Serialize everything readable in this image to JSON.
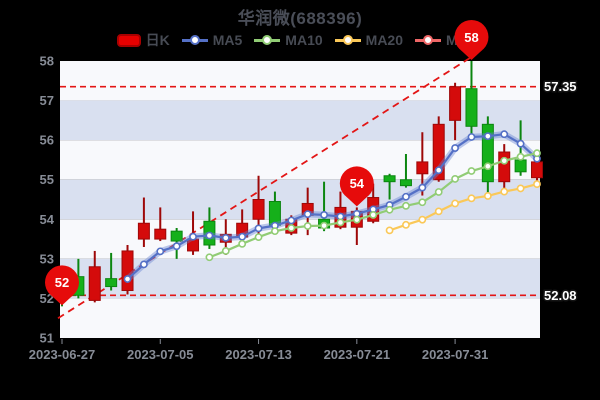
{
  "title": "华润微(688396)",
  "legend": [
    {
      "label": "日K",
      "color": "#e60000",
      "type": "rect"
    },
    {
      "label": "MA5",
      "color": "#5470c6",
      "type": "line"
    },
    {
      "label": "MA10",
      "color": "#91cc75",
      "type": "line"
    },
    {
      "label": "MA20",
      "color": "#fac858",
      "type": "line"
    },
    {
      "label": "MA30",
      "color": "#ee6666",
      "type": "line"
    }
  ],
  "chart_data": {
    "type": "candlestick",
    "title": "华润微(688396)",
    "y_axis": {
      "min": 51,
      "max": 58,
      "ticks": [
        58,
        57,
        56,
        55,
        54,
        53,
        52,
        51
      ]
    },
    "x_tick_indexes": [
      1,
      7,
      13,
      19,
      25
    ],
    "dates": [
      "2023-06-27",
      "2023-06-28",
      "2023-06-29",
      "2023-06-30",
      "2023-07-03",
      "2023-07-04",
      "2023-07-05",
      "2023-07-06",
      "2023-07-07",
      "2023-07-10",
      "2023-07-11",
      "2023-07-12",
      "2023-07-13",
      "2023-07-14",
      "2023-07-17",
      "2023-07-18",
      "2023-07-19",
      "2023-07-20",
      "2023-07-21",
      "2023-07-24",
      "2023-07-25",
      "2023-07-26",
      "2023-07-27",
      "2023-07-28",
      "2023-07-31",
      "2023-08-01",
      "2023-08-02",
      "2023-08-03",
      "2023-08-04",
      "2023-08-07"
    ],
    "candles": [
      {
        "open": 52.45,
        "close": 52.05,
        "low": 51.8,
        "high": 52.6
      },
      {
        "open": 52.55,
        "close": 52.08,
        "low": 52.0,
        "high": 53.0
      },
      {
        "open": 51.95,
        "close": 52.8,
        "low": 51.9,
        "high": 53.2
      },
      {
        "open": 52.5,
        "close": 52.3,
        "low": 52.2,
        "high": 53.15
      },
      {
        "open": 52.2,
        "close": 53.2,
        "low": 52.1,
        "high": 53.35
      },
      {
        "open": 53.5,
        "close": 53.9,
        "low": 53.3,
        "high": 54.55
      },
      {
        "open": 53.5,
        "close": 53.75,
        "low": 53.45,
        "high": 54.3
      },
      {
        "open": 53.7,
        "close": 53.45,
        "low": 53.0,
        "high": 53.78
      },
      {
        "open": 53.2,
        "close": 53.5,
        "low": 53.1,
        "high": 54.2
      },
      {
        "open": 53.95,
        "close": 53.35,
        "low": 53.25,
        "high": 54.3
      },
      {
        "open": 53.42,
        "close": 53.62,
        "low": 53.1,
        "high": 54.0
      },
      {
        "open": 53.55,
        "close": 53.9,
        "low": 53.5,
        "high": 54.25
      },
      {
        "open": 54.0,
        "close": 54.5,
        "low": 53.55,
        "high": 55.1
      },
      {
        "open": 54.45,
        "close": 53.85,
        "low": 53.8,
        "high": 54.7
      },
      {
        "open": 53.65,
        "close": 54.0,
        "low": 53.6,
        "high": 54.1
      },
      {
        "open": 54.1,
        "close": 54.4,
        "low": 53.6,
        "high": 54.8
      },
      {
        "open": 54.0,
        "close": 53.78,
        "low": 53.7,
        "high": 54.95
      },
      {
        "open": 53.8,
        "close": 54.3,
        "low": 53.75,
        "high": 54.7
      },
      {
        "open": 53.8,
        "close": 54.2,
        "low": 53.35,
        "high": 54.3
      },
      {
        "open": 53.95,
        "close": 54.55,
        "low": 53.9,
        "high": 54.9
      },
      {
        "open": 55.1,
        "close": 54.95,
        "low": 54.5,
        "high": 55.15
      },
      {
        "open": 55.0,
        "close": 54.85,
        "low": 54.8,
        "high": 55.65
      },
      {
        "open": 55.15,
        "close": 55.45,
        "low": 54.6,
        "high": 56.2
      },
      {
        "open": 55.0,
        "close": 56.4,
        "low": 54.95,
        "high": 56.6
      },
      {
        "open": 56.5,
        "close": 57.35,
        "low": 56.0,
        "high": 57.45
      },
      {
        "open": 57.3,
        "close": 56.35,
        "low": 56.05,
        "high": 58.0
      },
      {
        "open": 56.4,
        "close": 54.95,
        "low": 54.5,
        "high": 56.6
      },
      {
        "open": 54.95,
        "close": 55.7,
        "low": 54.7,
        "high": 55.9
      },
      {
        "open": 55.5,
        "close": 55.2,
        "low": 55.1,
        "high": 56.5
      },
      {
        "open": 55.05,
        "close": 55.45,
        "low": 54.95,
        "high": 55.6
      }
    ],
    "series": [
      {
        "name": "MA5",
        "start": 5,
        "values": [
          52.49,
          52.86,
          53.19,
          53.32,
          53.56,
          53.59,
          53.53,
          53.56,
          53.77,
          53.84,
          53.97,
          54.13,
          54.11,
          54.07,
          54.14,
          54.25,
          54.36,
          54.57,
          54.8,
          55.24,
          55.8,
          56.08,
          56.1,
          56.15,
          55.91,
          55.53
        ]
      },
      {
        "name": "MA10",
        "start": 10,
        "values": [
          53.04,
          53.2,
          53.38,
          53.55,
          53.7,
          53.78,
          53.83,
          53.84,
          53.92,
          53.99,
          54.11,
          54.24,
          54.34,
          54.43,
          54.69,
          55.02,
          55.22,
          55.34,
          55.48,
          55.58,
          55.67
        ]
      },
      {
        "name": "MA20",
        "start": 21,
        "values": [
          53.72,
          53.86,
          53.99,
          54.2,
          54.4,
          54.53,
          54.59,
          54.7,
          54.78,
          54.89
        ]
      }
    ],
    "reference_lines": [
      {
        "value": 57.35,
        "label": "57.35"
      },
      {
        "value": 52.08,
        "label": "52.08"
      }
    ],
    "trend_line": {
      "from": {
        "date_index": 1,
        "price": 51.5
      },
      "to": {
        "date_index": 26,
        "price": 58.1
      }
    },
    "markers": [
      {
        "label": "52",
        "date_index": 1,
        "anchor": "low"
      },
      {
        "label": "54",
        "date_index": 19,
        "anchor": "high"
      },
      {
        "label": "58",
        "date_index": 26,
        "anchor": "high"
      }
    ],
    "layout": {
      "grid": false,
      "legend_position": "top",
      "band_stripes": true
    },
    "colors": {
      "up": "#d40b0b",
      "up_border": "#9e0808",
      "down": "#15b01a",
      "down_border": "#0b8610",
      "ma5": "#5470c6",
      "ma5_halo": "rgba(100,128,210,0.42)",
      "ma10": "#91cc75",
      "ma20": "#fac858",
      "ma30": "#ee6666",
      "pin": "#e60b0b",
      "ref_line": "#e31515",
      "band_light": "#f8f9fc",
      "band_dark": "#d9e0f0",
      "axis_text": "#878c96",
      "background": "#000000"
    }
  }
}
